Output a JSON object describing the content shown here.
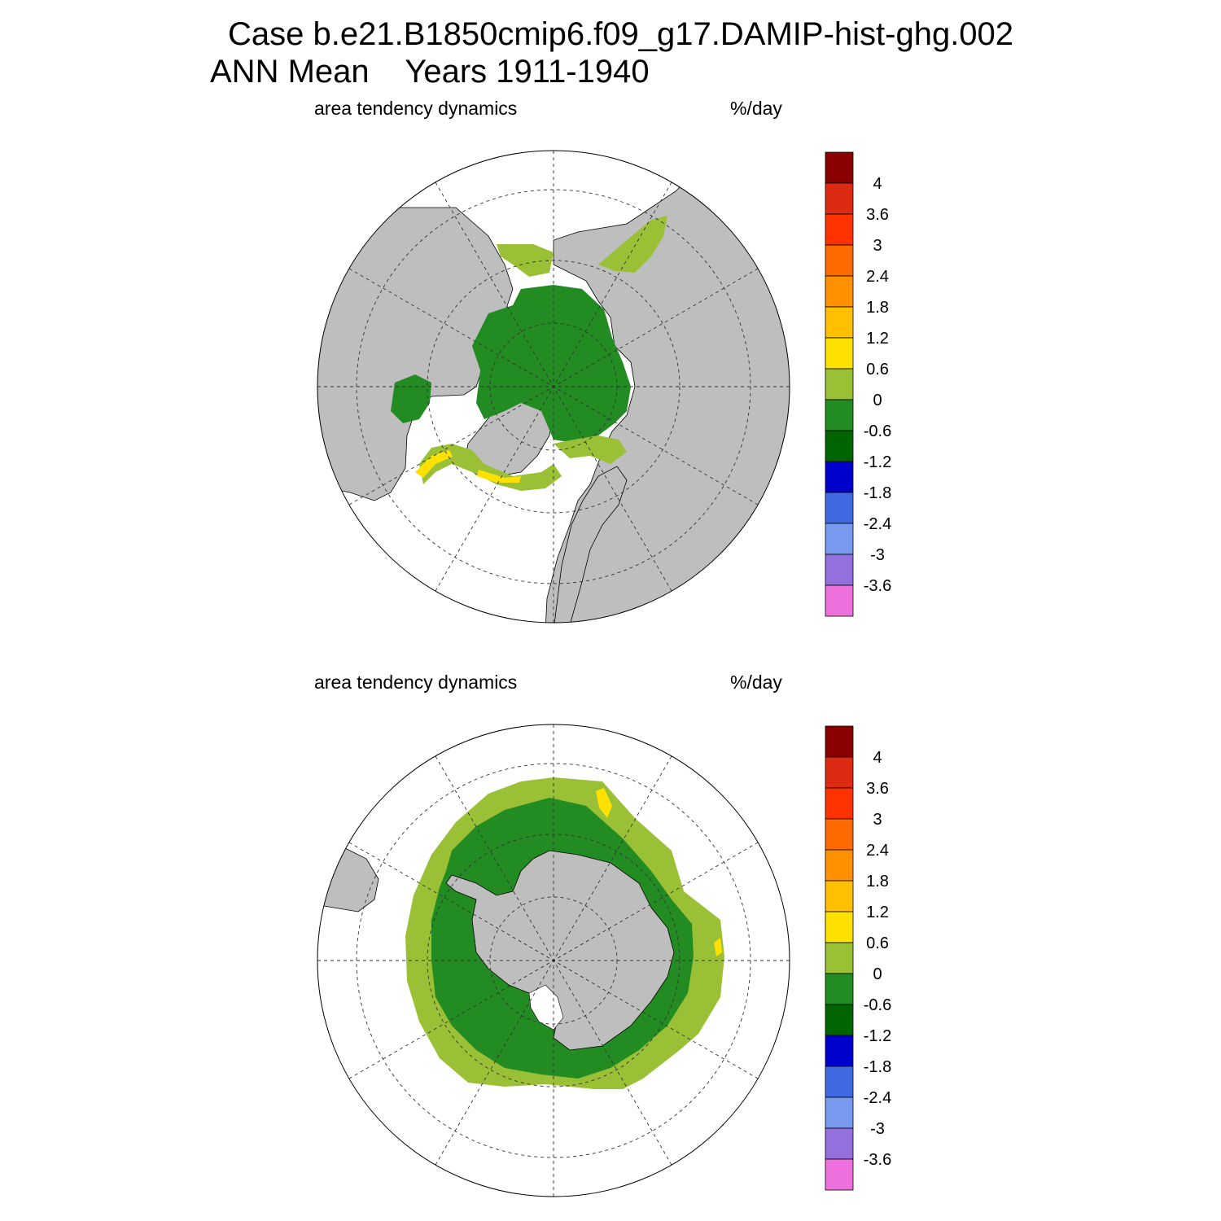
{
  "header": {
    "case_line": "Case b.e21.B1850cmip6.f09_g17.DAMIP-hist-ghg.002",
    "period_line": "ANN Mean    Years 1911-1940"
  },
  "panels": [
    {
      "hemisphere": "north",
      "variable": "area tendency dynamics",
      "units": "%/day"
    },
    {
      "hemisphere": "south",
      "variable": "area tendency dynamics",
      "units": "%/day"
    }
  ],
  "colorbar": {
    "labels": [
      "4",
      "3.6",
      "3",
      "2.4",
      "1.8",
      "1.2",
      "0.6",
      "0",
      "-0.6",
      "-1.2",
      "-1.8",
      "-2.4",
      "-3",
      "-3.6"
    ],
    "colors": [
      "#8b0000",
      "#dd2a12",
      "#ff3200",
      "#ff6a00",
      "#ff9100",
      "#ffc000",
      "#ffe100",
      "#9ac035",
      "#228b22",
      "#006400",
      "#0000cd",
      "#4169e1",
      "#789aee",
      "#9370db",
      "#ee70dd"
    ]
  },
  "map_colors": {
    "land": "#bebebe",
    "ocean": "#ffffff"
  }
}
